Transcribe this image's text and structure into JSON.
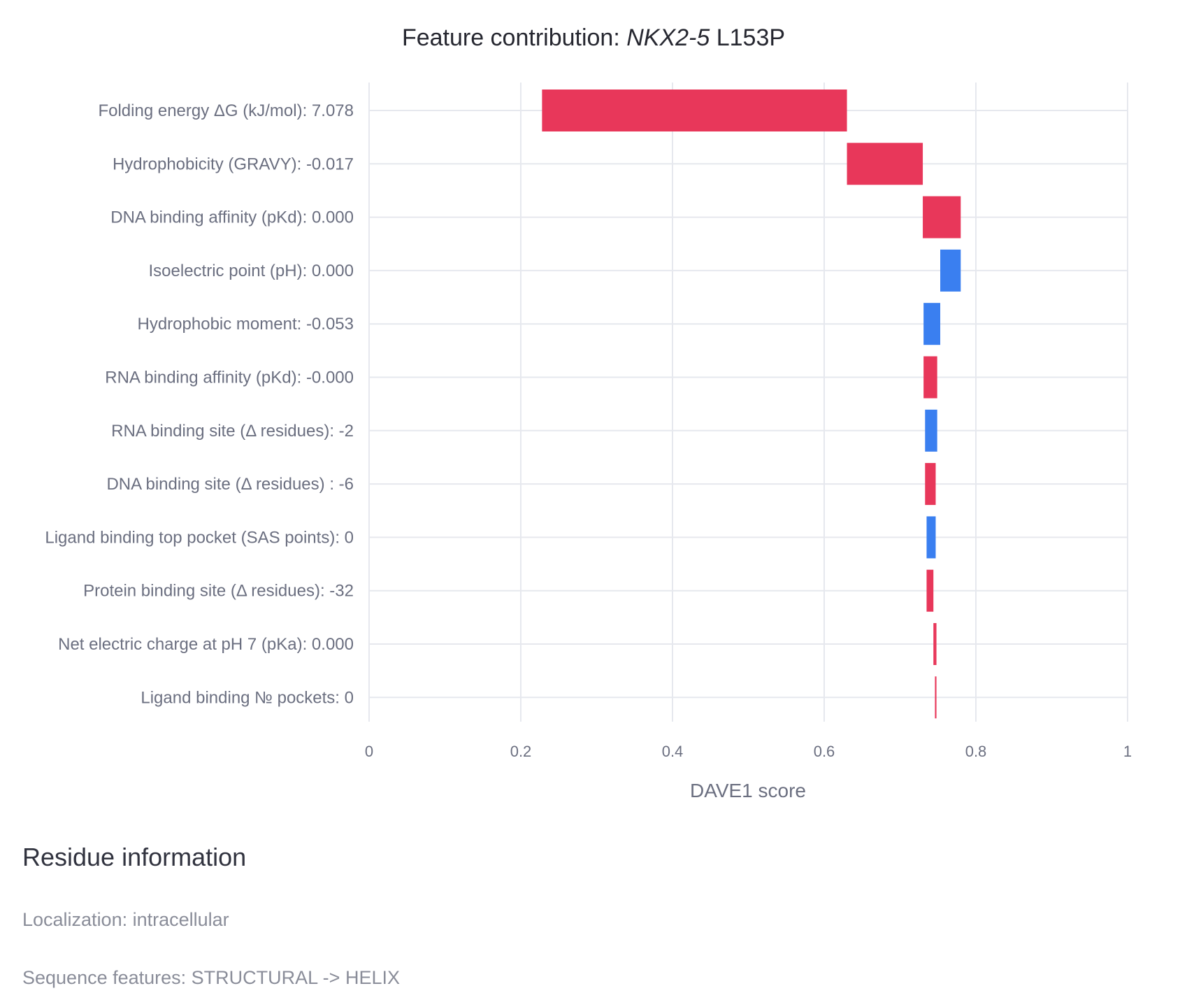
{
  "chart_data": {
    "type": "bar",
    "orientation": "horizontal",
    "variant": "waterfall",
    "title": {
      "prefix": "Feature contribution: ",
      "gene": "NKX2-5",
      "mutation": " L153P"
    },
    "xlabel": "DAVE1 score",
    "ylabel": "",
    "xlim": [
      0,
      1
    ],
    "xticks": [
      0,
      0.2,
      0.4,
      0.6,
      0.8,
      1
    ],
    "xtick_labels": [
      "0",
      "0.2",
      "0.4",
      "0.6",
      "0.8",
      "1"
    ],
    "grid": true,
    "legend": "none",
    "colors": {
      "increase": "#e8375a",
      "decrease": "#3a7ff0",
      "grid": "#e6e8ee"
    },
    "categories": [
      "Folding energy ΔG (kJ/mol): 7.078",
      "Hydrophobicity (GRAVY): -0.017",
      "DNA binding affinity (pKd): 0.000",
      "Isoelectric point (pH): 0.000",
      "Hydrophobic moment: -0.053",
      "RNA binding affinity (pKd): -0.000",
      "RNA binding site (Δ residues): -2",
      "DNA binding site (Δ residues) : -6",
      "Ligand binding top pocket (SAS points): 0",
      "Protein binding site (Δ residues): -32",
      "Net electric charge at pH 7 (pKa): 0.000",
      "Ligand binding № pockets: 0"
    ],
    "bars": [
      {
        "start": 0.228,
        "end": 0.63,
        "direction": "increase"
      },
      {
        "start": 0.63,
        "end": 0.73,
        "direction": "increase"
      },
      {
        "start": 0.73,
        "end": 0.78,
        "direction": "increase"
      },
      {
        "start": 0.78,
        "end": 0.753,
        "direction": "decrease"
      },
      {
        "start": 0.753,
        "end": 0.731,
        "direction": "decrease"
      },
      {
        "start": 0.731,
        "end": 0.749,
        "direction": "increase"
      },
      {
        "start": 0.749,
        "end": 0.733,
        "direction": "decrease"
      },
      {
        "start": 0.733,
        "end": 0.747,
        "direction": "increase"
      },
      {
        "start": 0.747,
        "end": 0.735,
        "direction": "decrease"
      },
      {
        "start": 0.735,
        "end": 0.744,
        "direction": "increase"
      },
      {
        "start": 0.744,
        "end": 0.748,
        "direction": "increase"
      },
      {
        "start": 0.746,
        "end": 0.748,
        "direction": "increase"
      }
    ]
  },
  "residue_info": {
    "heading": "Residue information",
    "localization": "Localization: intracellular",
    "sequence_features": "Sequence features: STRUCTURAL -> HELIX"
  }
}
